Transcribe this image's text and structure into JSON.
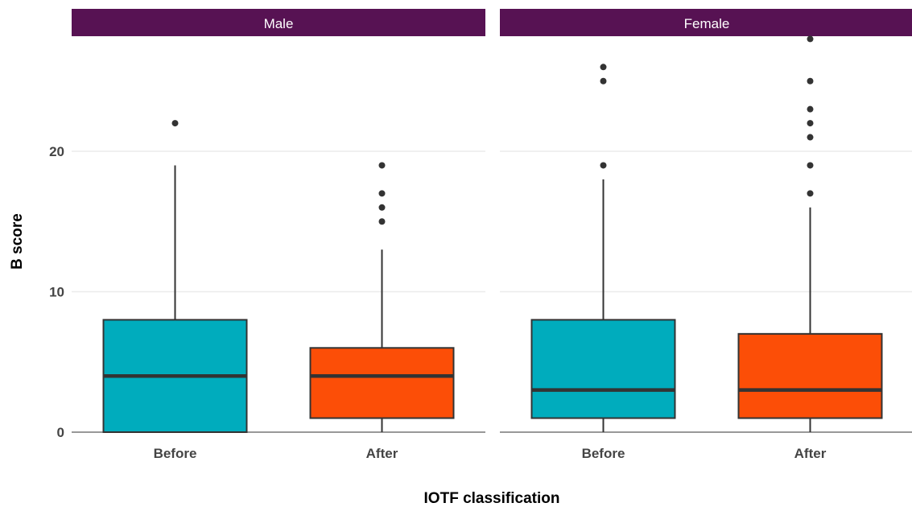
{
  "chart_data": {
    "type": "boxplot",
    "xlabel": "IOTF classification",
    "ylabel": "B score",
    "categories": [
      "Before",
      "After"
    ],
    "ylim": [
      0,
      28
    ],
    "yticks": [
      0,
      10,
      20
    ],
    "grid": true,
    "legend": "none",
    "colors": {
      "Before": "#00ACBD",
      "After": "#FC4E07",
      "strip": "#571253",
      "median": "#333333",
      "outline": "#333333"
    },
    "panels": [
      {
        "name": "Male",
        "boxes": [
          {
            "category": "Before",
            "min": 0,
            "q1": 0,
            "median": 4,
            "q3": 8,
            "max": 19,
            "outliers": [
              22
            ]
          },
          {
            "category": "After",
            "min": 0,
            "q1": 1,
            "median": 4,
            "q3": 6,
            "max": 13,
            "outliers": [
              15,
              16,
              17,
              19
            ]
          }
        ]
      },
      {
        "name": "Female",
        "boxes": [
          {
            "category": "Before",
            "min": 0,
            "q1": 1,
            "median": 3,
            "q3": 8,
            "max": 18,
            "outliers": [
              19,
              25,
              26
            ]
          },
          {
            "category": "After",
            "min": 0,
            "q1": 1,
            "median": 3,
            "q3": 7,
            "max": 16,
            "outliers": [
              17,
              19,
              21,
              22,
              23,
              25,
              28
            ]
          }
        ]
      }
    ]
  }
}
